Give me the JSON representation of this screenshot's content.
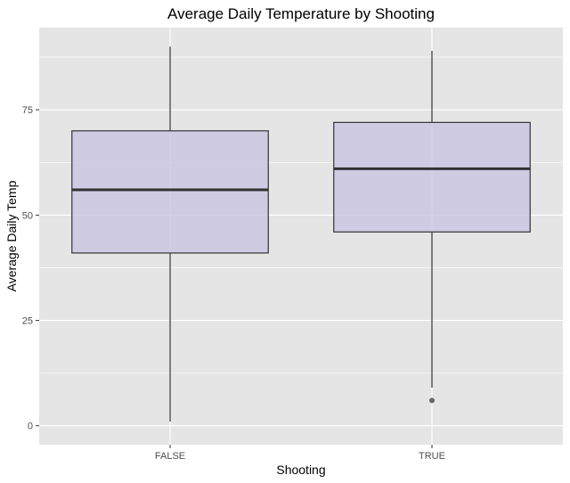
{
  "chart_data": {
    "type": "box",
    "title": "Average Daily Temperature by Shooting",
    "xlabel": "Shooting",
    "ylabel": "Average Daily Temp",
    "categories": [
      "FALSE",
      "TRUE"
    ],
    "boxes": [
      {
        "category": "FALSE",
        "whisker_low": 1,
        "q1": 41,
        "median": 56,
        "q3": 70,
        "whisker_high": 90,
        "outliers": []
      },
      {
        "category": "TRUE",
        "whisker_low": 9,
        "q1": 46,
        "median": 61,
        "q3": 72,
        "whisker_high": 89,
        "outliers": [
          6
        ]
      }
    ],
    "y_ticks": [
      0,
      25,
      50,
      75
    ],
    "ylim": [
      -4.5,
      94.5
    ],
    "grid": true,
    "colors": {
      "panel_background": "#e5e5e5",
      "grid": "#ffffff",
      "box_fill": "#cbc7e3",
      "box_stroke": "#333333",
      "outlier": "#666666"
    }
  }
}
